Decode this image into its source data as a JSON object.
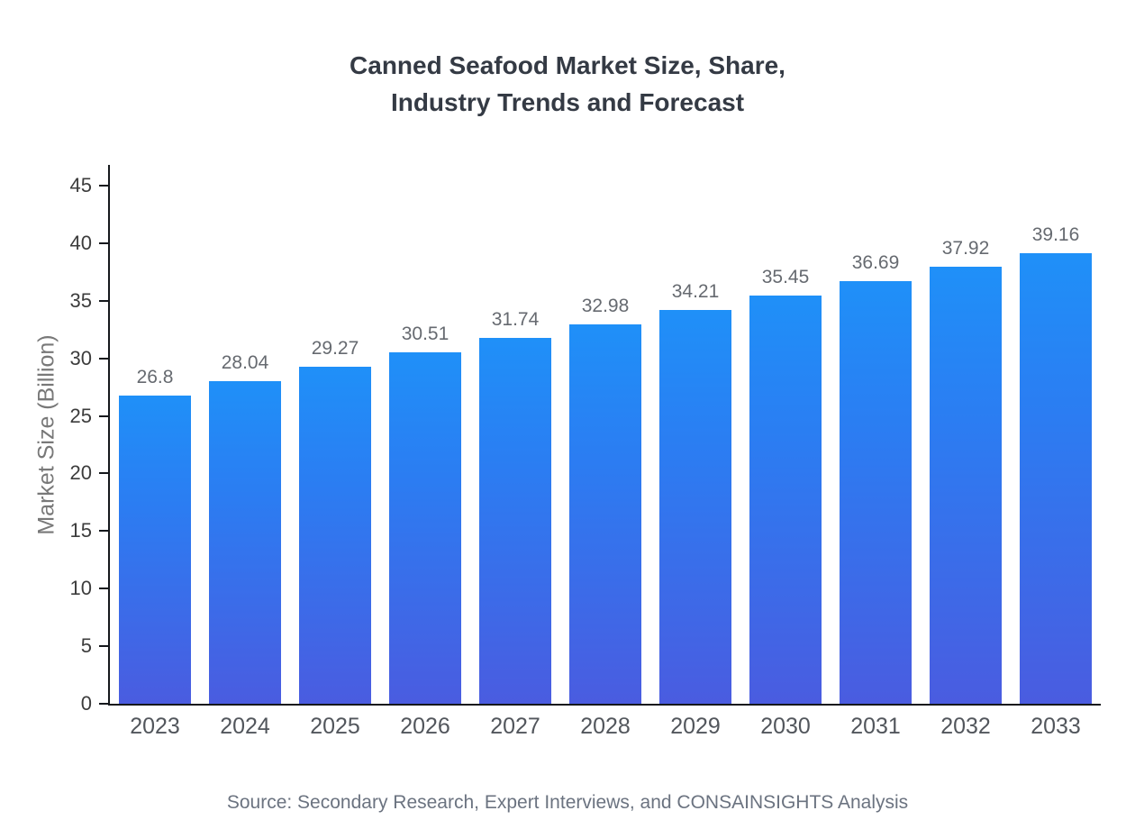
{
  "title": {
    "line1": "Canned Seafood Market Size, Share,",
    "line2": "Industry Trends and Forecast"
  },
  "source": "Source: Secondary Research, Expert Interviews, and CONSAINSIGHTS Analysis",
  "chart_data": {
    "type": "bar",
    "title": "Canned Seafood Market Size, Share, Industry Trends and Forecast",
    "categories": [
      "2023",
      "2024",
      "2025",
      "2026",
      "2027",
      "2028",
      "2029",
      "2030",
      "2031",
      "2032",
      "2033"
    ],
    "values": [
      26.8,
      28.04,
      29.27,
      30.51,
      31.74,
      32.98,
      34.21,
      35.45,
      36.69,
      37.92,
      39.16
    ],
    "xlabel": "",
    "ylabel": "Market Size (Billion)",
    "ylim": [
      0,
      45
    ],
    "ytick_step": 5,
    "grid": false,
    "legend_position": "none",
    "bar_gradient_top": "#1f90f8",
    "bar_gradient_bottom": "#4a5ce0",
    "axis_color": "#15181c",
    "value_label_color": "#666a70"
  }
}
